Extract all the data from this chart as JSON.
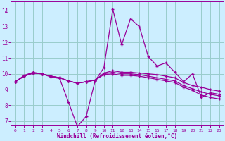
{
  "x": [
    0,
    1,
    2,
    3,
    4,
    5,
    6,
    7,
    8,
    9,
    10,
    11,
    12,
    13,
    14,
    15,
    16,
    17,
    18,
    19,
    20,
    21,
    22,
    23
  ],
  "line1": [
    9.5,
    9.9,
    10.1,
    10.0,
    9.8,
    9.7,
    8.2,
    6.65,
    7.3,
    9.55,
    10.4,
    14.1,
    11.85,
    13.5,
    13.0,
    11.1,
    10.5,
    10.7,
    10.1,
    9.5,
    10.0,
    8.5,
    8.8,
    8.7
  ],
  "line2": [
    9.5,
    9.85,
    10.05,
    10.0,
    9.85,
    9.75,
    9.55,
    9.4,
    9.5,
    9.6,
    10.05,
    10.2,
    10.1,
    10.1,
    10.05,
    10.0,
    9.95,
    9.85,
    9.75,
    9.45,
    9.25,
    9.15,
    9.0,
    8.9
  ],
  "line3": [
    9.5,
    9.85,
    10.05,
    10.0,
    9.85,
    9.75,
    9.55,
    9.4,
    9.5,
    9.6,
    10.0,
    10.1,
    10.0,
    10.0,
    9.95,
    9.85,
    9.75,
    9.65,
    9.55,
    9.25,
    9.05,
    8.85,
    8.7,
    8.6
  ],
  "line4": [
    9.5,
    9.85,
    10.05,
    10.0,
    9.85,
    9.75,
    9.55,
    9.4,
    9.5,
    9.6,
    9.95,
    10.0,
    9.9,
    9.9,
    9.85,
    9.75,
    9.65,
    9.55,
    9.45,
    9.15,
    8.95,
    8.65,
    8.5,
    8.4
  ],
  "color": "#990099",
  "bg_color": "#cceeff",
  "grid_color": "#99cccc",
  "ylabel_vals": [
    7,
    8,
    9,
    10,
    11,
    12,
    13,
    14
  ],
  "xlabel_vals": [
    0,
    1,
    2,
    3,
    4,
    5,
    6,
    7,
    8,
    9,
    10,
    11,
    12,
    13,
    14,
    15,
    16,
    17,
    18,
    19,
    20,
    21,
    22,
    23
  ],
  "xlabel": "Windchill (Refroidissement éolien,°C)",
  "ylim": [
    6.7,
    14.6
  ],
  "xlim": [
    -0.5,
    23.5
  ]
}
